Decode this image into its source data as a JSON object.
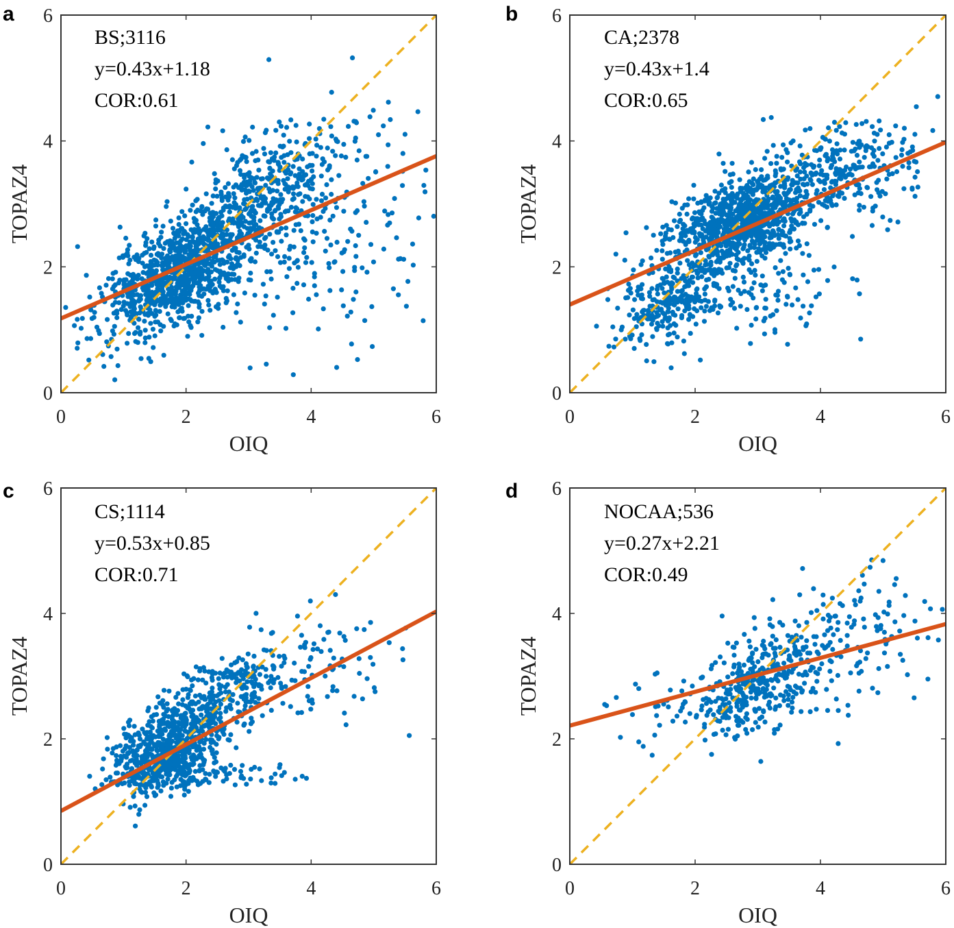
{
  "figure": {
    "colors": {
      "points": "#0072BD",
      "fit_line": "#D95319",
      "reference_line": "#EDB120",
      "axes": "#333333"
    }
  },
  "chart_data": [
    {
      "panel": "a",
      "type": "scatter",
      "title": "",
      "xlabel": "OIQ",
      "ylabel": "TOPAZ4",
      "xlim": [
        0,
        6
      ],
      "ylim": [
        0,
        6
      ],
      "xticks": [
        "0",
        "2",
        "4",
        "6"
      ],
      "yticks": [
        "0",
        "2",
        "4",
        "6"
      ],
      "grid": false,
      "annotations": [
        "BS;3116",
        "y=0.43x+1.18",
        "COR:0.61"
      ],
      "n_points": 3116,
      "fit": {
        "slope": 0.43,
        "intercept": 1.18
      },
      "reference_line": {
        "slope": 1,
        "intercept": 0,
        "style": "dashed"
      },
      "correlation": 0.61,
      "clusters": [
        {
          "cx": 2.0,
          "cy": 2.0,
          "sx": 0.55,
          "sy": 0.45,
          "rho": 0.5,
          "weight": 0.55
        },
        {
          "cx": 3.3,
          "cy": 3.2,
          "sx": 0.6,
          "sy": 0.5,
          "rho": 0.4,
          "weight": 0.25
        },
        {
          "cx": 4.3,
          "cy": 2.6,
          "sx": 0.9,
          "sy": 0.9,
          "rho": 0.2,
          "weight": 0.12
        },
        {
          "cx": 1.2,
          "cy": 1.2,
          "sx": 0.5,
          "sy": 0.45,
          "rho": 0.3,
          "weight": 0.08
        }
      ]
    },
    {
      "panel": "b",
      "type": "scatter",
      "title": "",
      "xlabel": "OIQ",
      "ylabel": "TOPAZ4",
      "xlim": [
        0,
        6
      ],
      "ylim": [
        0,
        6
      ],
      "xticks": [
        "0",
        "2",
        "4",
        "6"
      ],
      "yticks": [
        "0",
        "2",
        "4",
        "6"
      ],
      "grid": false,
      "annotations": [
        "CA;2378",
        "y=0.43x+1.4",
        "COR:0.65"
      ],
      "n_points": 2378,
      "fit": {
        "slope": 0.43,
        "intercept": 1.4
      },
      "reference_line": {
        "slope": 1,
        "intercept": 0,
        "style": "dashed"
      },
      "correlation": 0.65,
      "clusters": [
        {
          "cx": 2.7,
          "cy": 2.7,
          "sx": 0.55,
          "sy": 0.35,
          "rho": 0.4,
          "weight": 0.55
        },
        {
          "cx": 4.3,
          "cy": 3.5,
          "sx": 0.8,
          "sy": 0.4,
          "rho": 0.3,
          "weight": 0.2
        },
        {
          "cx": 1.5,
          "cy": 1.4,
          "sx": 0.4,
          "sy": 0.35,
          "rho": 0.3,
          "weight": 0.15
        },
        {
          "cx": 2.8,
          "cy": 1.7,
          "sx": 0.8,
          "sy": 0.4,
          "rho": 0.1,
          "weight": 0.1
        }
      ]
    },
    {
      "panel": "c",
      "type": "scatter",
      "title": "",
      "xlabel": "OIQ",
      "ylabel": "TOPAZ4",
      "xlim": [
        0,
        6
      ],
      "ylim": [
        0,
        6
      ],
      "xticks": [
        "0",
        "2",
        "4",
        "6"
      ],
      "yticks": [
        "0",
        "2",
        "4",
        "6"
      ],
      "grid": false,
      "annotations": [
        "CS;1114",
        "y=0.53x+0.85",
        "COR:0.71"
      ],
      "n_points": 1114,
      "fit": {
        "slope": 0.53,
        "intercept": 0.85
      },
      "reference_line": {
        "slope": 1,
        "intercept": 0,
        "style": "dashed"
      },
      "correlation": 0.71,
      "clusters": [
        {
          "cx": 1.6,
          "cy": 1.65,
          "sx": 0.4,
          "sy": 0.3,
          "rho": 0.3,
          "weight": 0.5
        },
        {
          "cx": 2.1,
          "cy": 2.3,
          "sx": 0.45,
          "sy": 0.3,
          "rho": 0.4,
          "weight": 0.25
        },
        {
          "cx": 2.9,
          "cy": 3.0,
          "sx": 0.35,
          "sy": 0.2,
          "rho": 0.2,
          "weight": 0.1
        },
        {
          "cx": 3.8,
          "cy": 3.1,
          "sx": 0.8,
          "sy": 0.45,
          "rho": 0.3,
          "weight": 0.1
        },
        {
          "cx": 2.6,
          "cy": 1.45,
          "sx": 0.6,
          "sy": 0.1,
          "rho": 0.0,
          "weight": 0.05
        }
      ]
    },
    {
      "panel": "d",
      "type": "scatter",
      "title": "",
      "xlabel": "OIQ",
      "ylabel": "TOPAZ4",
      "xlim": [
        0,
        6
      ],
      "ylim": [
        0,
        6
      ],
      "xticks": [
        "0",
        "2",
        "4",
        "6"
      ],
      "yticks": [
        "0",
        "2",
        "4",
        "6"
      ],
      "grid": false,
      "annotations": [
        "NOCAA;536",
        "y=0.27x+2.21",
        "COR:0.49"
      ],
      "n_points": 536,
      "fit": {
        "slope": 0.27,
        "intercept": 2.21
      },
      "reference_line": {
        "slope": 1,
        "intercept": 0,
        "style": "dashed"
      },
      "correlation": 0.49,
      "clusters": [
        {
          "cx": 3.0,
          "cy": 2.85,
          "sx": 0.45,
          "sy": 0.4,
          "rho": 0.4,
          "weight": 0.6
        },
        {
          "cx": 4.4,
          "cy": 3.5,
          "sx": 0.8,
          "sy": 0.6,
          "rho": 0.3,
          "weight": 0.3
        },
        {
          "cx": 1.7,
          "cy": 2.5,
          "sx": 0.5,
          "sy": 0.35,
          "rho": 0.1,
          "weight": 0.1
        }
      ]
    }
  ]
}
